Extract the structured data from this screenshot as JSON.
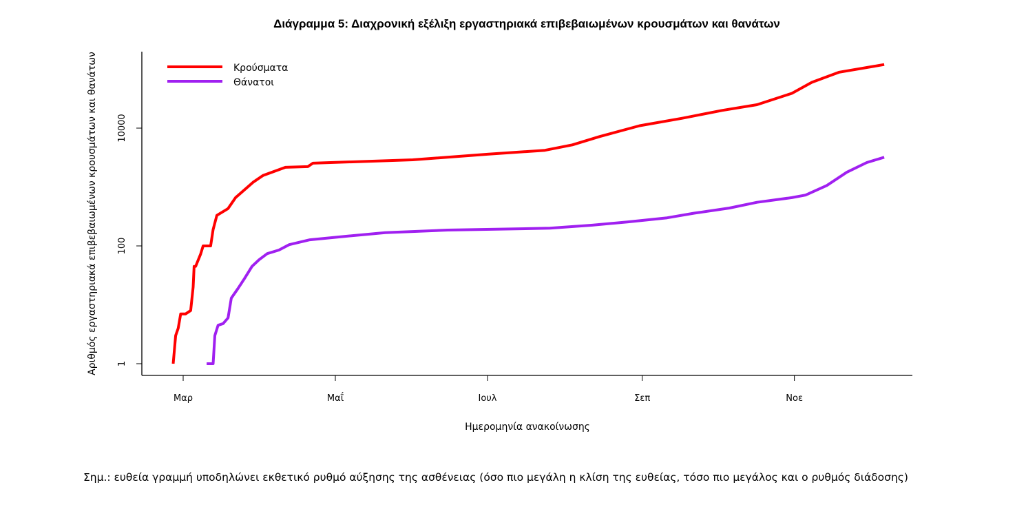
{
  "chart_data": {
    "type": "line",
    "title": "Διάγραμμα 5: Διαχρονική εξέλιξη εργαστηριακά επιβεβαιωμένων κρουσμάτων και θανάτων",
    "xlabel": "Ημερομηνία ανακοίνωσης",
    "ylabel": "Αριθμός εργαστηριακά επιβεβαιωμένων κρουσμάτων και θανάτων",
    "x_units": "days since 1 March",
    "xlim": [
      -16,
      293
    ],
    "x_ticks": [
      {
        "value": 0,
        "label": "Μαρ"
      },
      {
        "value": 61,
        "label": "Μαΐ"
      },
      {
        "value": 122,
        "label": "Ιουλ"
      },
      {
        "value": 184,
        "label": "Σεπ"
      },
      {
        "value": 245,
        "label": "Νοε"
      }
    ],
    "y_scale": "log",
    "ylim": [
      0.63,
      300000
    ],
    "y_ticks": [
      {
        "value": 1,
        "label": "1"
      },
      {
        "value": 100,
        "label": "100"
      },
      {
        "value": 10000,
        "label": "10000"
      }
    ],
    "grid": false,
    "legend_position": "top-left",
    "series": [
      {
        "name": "Κρούσματα",
        "color": "#ff0000",
        "x": [
          -4,
          -3,
          -2,
          -1,
          1,
          3,
          4,
          4.4,
          5,
          7,
          8,
          11,
          12,
          13.5,
          18,
          21,
          28,
          32,
          41,
          50,
          52,
          92,
          122,
          145,
          156,
          167,
          183,
          200,
          216,
          230,
          244,
          252,
          263,
          281
        ],
        "y": [
          1,
          3,
          4,
          7,
          7,
          8,
          20,
          45,
          45,
          73,
          100,
          100,
          190,
          330,
          430,
          660,
          1200,
          1570,
          2160,
          2220,
          2540,
          2900,
          3600,
          4200,
          5200,
          7200,
          11000,
          14700,
          20000,
          25000,
          39000,
          60000,
          89000,
          120000
        ]
      },
      {
        "name": "Θάνατοι",
        "color": "#a020f0",
        "x": [
          9.4,
          12,
          12.7,
          14,
          16,
          18,
          19.3,
          22,
          24.6,
          27.6,
          30.4,
          33.7,
          38.4,
          42.5,
          50.8,
          64.6,
          81,
          106,
          147,
          164,
          178,
          194,
          205,
          219,
          230,
          244,
          249.5,
          258,
          266,
          274,
          281
        ],
        "y": [
          1,
          1,
          3,
          4.5,
          4.8,
          6,
          13,
          19,
          28,
          45,
          58,
          74,
          85,
          105,
          127,
          145,
          168,
          186,
          200,
          225,
          255,
          300,
          360,
          440,
          550,
          660,
          730,
          1060,
          1780,
          2600,
          3200
        ]
      }
    ]
  },
  "note": "Σημ.: ευθεία γραμμή υποδηλώνει εκθετικό ρυθμό αύξησης της ασθένειας (όσο πιο μεγάλη η κλίση της ευθείας, τόσο πιο μεγάλος και ο ρυθμός διάδοσης)"
}
